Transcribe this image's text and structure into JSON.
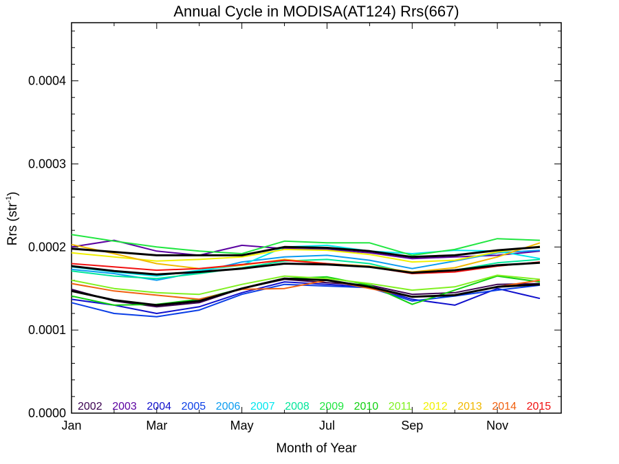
{
  "chart_data": {
    "type": "line",
    "title": "Annual Cycle in MODISA(AT124) Rrs(667)",
    "xlabel": "Month of Year",
    "ylabel": {
      "base": "Rrs (str",
      "sup": "-1",
      "tail": ")"
    },
    "xlim": [
      1,
      12.5
    ],
    "ylim": [
      0,
      0.00047
    ],
    "x_ticks": [
      {
        "x": 1,
        "label": "Jan"
      },
      {
        "x": 3,
        "label": "Mar"
      },
      {
        "x": 5,
        "label": "May"
      },
      {
        "x": 7,
        "label": "Jul"
      },
      {
        "x": 9,
        "label": "Sep"
      },
      {
        "x": 11,
        "label": "Nov"
      }
    ],
    "y_ticks": [
      {
        "y": 0,
        "label": "0.0000"
      },
      {
        "y": 0.0001,
        "label": "0.0001"
      },
      {
        "y": 0.0002,
        "label": "0.0002"
      },
      {
        "y": 0.0003,
        "label": "0.0003"
      },
      {
        "y": 0.0004,
        "label": "0.0004"
      }
    ],
    "legend_placement": "bottom",
    "x": [
      1,
      2,
      3,
      4,
      5,
      6,
      7,
      8,
      9,
      10,
      11,
      12
    ],
    "series": [
      {
        "name": "2002",
        "color": "#3a0050",
        "values": [
          0.000149,
          0.000135,
          0.000128,
          0.000133,
          0.00015,
          0.000161,
          0.000157,
          0.000154,
          0.000143,
          0.000145,
          0.000155,
          0.000156
        ]
      },
      {
        "name": "2003",
        "color": "#5a00a0",
        "values": [
          0.0002,
          0.000208,
          0.000195,
          0.00019,
          0.000202,
          0.000198,
          0.000197,
          0.000193,
          0.000186,
          0.000188,
          0.00019,
          0.000195
        ]
      },
      {
        "name": "2004",
        "color": "#1010cc",
        "values": [
          0.000137,
          0.00013,
          0.00012,
          0.000128,
          0.000145,
          0.000158,
          0.000155,
          0.000152,
          0.000137,
          0.00013,
          0.00015,
          0.000138
        ]
      },
      {
        "name": "2005",
        "color": "#0a3ee6",
        "values": [
          0.000133,
          0.00012,
          0.000116,
          0.000124,
          0.000143,
          0.000155,
          0.000153,
          0.000151,
          0.000135,
          0.000141,
          0.000148,
          0.000154
        ]
      },
      {
        "name": "2006",
        "color": "#0a9cf0",
        "values": [
          0.000173,
          0.000168,
          0.00016,
          0.00017,
          0.000182,
          0.000188,
          0.00019,
          0.000184,
          0.000174,
          0.000183,
          0.000193,
          0.000196
        ]
      },
      {
        "name": "2007",
        "color": "#00e6ee",
        "values": [
          0.000176,
          0.00017,
          0.000165,
          0.000172,
          0.000178,
          0.0002,
          0.000202,
          0.000195,
          0.000192,
          0.000196,
          0.000195,
          0.000186
        ]
      },
      {
        "name": "2008",
        "color": "#00e69a",
        "values": [
          0.000171,
          0.000165,
          0.000162,
          0.000168,
          0.000175,
          0.000183,
          0.000185,
          0.00018,
          0.000168,
          0.000172,
          0.000181,
          0.000185
        ]
      },
      {
        "name": "2009",
        "color": "#20e640",
        "values": [
          0.000215,
          0.000207,
          0.0002,
          0.000195,
          0.000192,
          0.000207,
          0.000205,
          0.000205,
          0.00019,
          0.000197,
          0.00021,
          0.000208
        ]
      },
      {
        "name": "2010",
        "color": "#10d010",
        "values": [
          0.000141,
          0.00013,
          0.000131,
          0.000137,
          0.00015,
          0.000162,
          0.000164,
          0.000154,
          0.000131,
          0.000148,
          0.000165,
          0.000158
        ]
      },
      {
        "name": "2011",
        "color": "#80f020",
        "values": [
          0.00016,
          0.00015,
          0.000145,
          0.000143,
          0.000155,
          0.000165,
          0.000162,
          0.000156,
          0.000148,
          0.000152,
          0.000166,
          0.000161
        ]
      },
      {
        "name": "2012",
        "color": "#f0f000",
        "values": [
          0.000193,
          0.000188,
          0.000183,
          0.000185,
          0.000188,
          0.000197,
          0.000196,
          0.000191,
          0.000182,
          0.000184,
          0.000194,
          0.000201
        ]
      },
      {
        "name": "2013",
        "color": "#f0b800",
        "values": [
          0.000203,
          0.000192,
          0.00018,
          0.000174,
          0.000178,
          0.000185,
          0.00018,
          0.000177,
          0.00017,
          0.000175,
          0.000188,
          0.000205
        ]
      },
      {
        "name": "2014",
        "color": "#f06010",
        "values": [
          0.000156,
          0.000147,
          0.000142,
          0.000137,
          0.000149,
          0.00015,
          0.00016,
          0.00015,
          0.00014,
          0.000142,
          0.000152,
          0.00016
        ]
      },
      {
        "name": "2015",
        "color": "#f01010",
        "values": [
          0.00018,
          0.000176,
          0.000172,
          0.000174,
          0.000179,
          0.000184,
          0.00018,
          0.000176,
          0.000168,
          0.00017,
          0.000177,
          0.000182
        ]
      },
      {
        "name": "",
        "color": "#000000",
        "values": [
          0.000198,
          0.000194,
          0.00019,
          0.00019,
          0.00019,
          0.0002,
          0.000199,
          0.000195,
          0.000188,
          0.00019,
          0.000196,
          0.0002
        ]
      },
      {
        "name": "",
        "color": "#000000",
        "values": [
          0.000177,
          0.000171,
          0.000167,
          0.00017,
          0.000174,
          0.00018,
          0.000179,
          0.000176,
          0.000169,
          0.000172,
          0.000178,
          0.000181
        ]
      },
      {
        "name": "",
        "color": "#000000",
        "values": [
          0.000147,
          0.000136,
          0.00013,
          0.000135,
          0.00015,
          0.000162,
          0.00016,
          0.000152,
          0.00014,
          0.000142,
          0.000152,
          0.000155
        ]
      }
    ]
  }
}
